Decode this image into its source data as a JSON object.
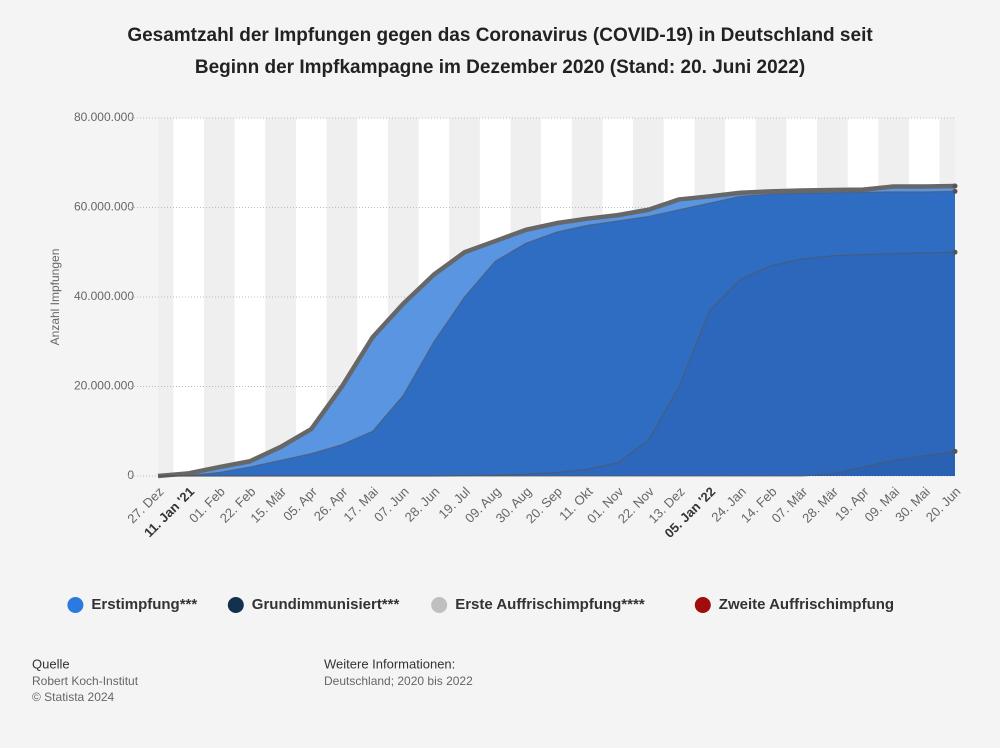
{
  "chart_data": {
    "type": "area",
    "title": "Gesamtzahl der Impfungen gegen das Coronavirus (COVID-19) in Deutschland seit",
    "subtitle": "Beginn der Impfkampagne im Dezember 2020 (Stand: 20. Juni 2022)",
    "y_label": "Anzahl Impfungen",
    "categories": [
      "27. Dez",
      "11. Jan '21",
      "01. Feb",
      "22. Feb",
      "15. Mär",
      "05. Apr",
      "26. Apr",
      "17. Mai",
      "07. Jun",
      "28. Jun",
      "19. Jul",
      "09. Aug",
      "30. Aug",
      "20. Sep",
      "11. Okt",
      "01. Nov",
      "22. Nov",
      "13. Dez",
      "05. Jan '22",
      "24. Jan",
      "14. Feb",
      "07. Mär",
      "28. Mär",
      "19. Apr",
      "09. Mai",
      "30. Mai",
      "20. Jun"
    ],
    "series": [
      {
        "name": "Erstimpfung***",
        "color": "#2a7ae2",
        "values": [
          0,
          600000,
          2000000,
          3300000,
          6500000,
          10500000,
          20000000,
          31000000,
          38500000,
          45000000,
          50000000,
          52500000,
          55000000,
          56500000,
          57500000,
          58300000,
          59500000,
          61800000,
          62500000,
          63300000,
          63600000,
          63800000,
          63900000,
          64000000,
          64700000,
          64700000,
          64800000
        ]
      },
      {
        "name": "Grundimmunisiert***",
        "color": "#14304f",
        "values": [
          0,
          100000,
          800000,
          2000000,
          3500000,
          5000000,
          7000000,
          10000000,
          18000000,
          30000000,
          40000000,
          48000000,
          52000000,
          54500000,
          56000000,
          57000000,
          58000000,
          59500000,
          61000000,
          62500000,
          63000000,
          63200000,
          63300000,
          63400000,
          63500000,
          63500000,
          63600000
        ]
      },
      {
        "name": "Erste Auffrischimpfung****",
        "color": "#bfbfbf",
        "values": [
          0,
          0,
          0,
          0,
          0,
          0,
          0,
          0,
          0,
          0,
          100000,
          200000,
          400000,
          800000,
          1500000,
          3000000,
          8000000,
          20000000,
          37000000,
          44000000,
          47000000,
          48500000,
          49200000,
          49500000,
          49700000,
          49900000,
          50000000
        ]
      },
      {
        "name": "Zweite Auffrischimpfung",
        "color": "#a10d0d",
        "values": [
          0,
          0,
          0,
          0,
          0,
          0,
          0,
          0,
          0,
          0,
          0,
          0,
          0,
          0,
          0,
          0,
          0,
          0,
          0,
          0,
          0,
          0,
          500000,
          2000000,
          3500000,
          4500000,
          5500000
        ]
      }
    ],
    "ylim": [
      0,
      80000000
    ],
    "yticks": [
      {
        "value": 0,
        "label": "0"
      },
      {
        "value": 20000000,
        "label": "20.000.000"
      },
      {
        "value": 40000000,
        "label": "40.000.000"
      },
      {
        "value": 60000000,
        "label": "60.000.000"
      },
      {
        "value": 80000000,
        "label": "80.000.000"
      }
    ],
    "grid": true,
    "legend": "bottom"
  },
  "footer": {
    "source_title": "Quelle",
    "source": "Robert Koch-Institut",
    "copyright": "© Statista 2024",
    "info_title": "Weitere Informationen:",
    "info": "Deutschland; 2020 bis 2022"
  }
}
